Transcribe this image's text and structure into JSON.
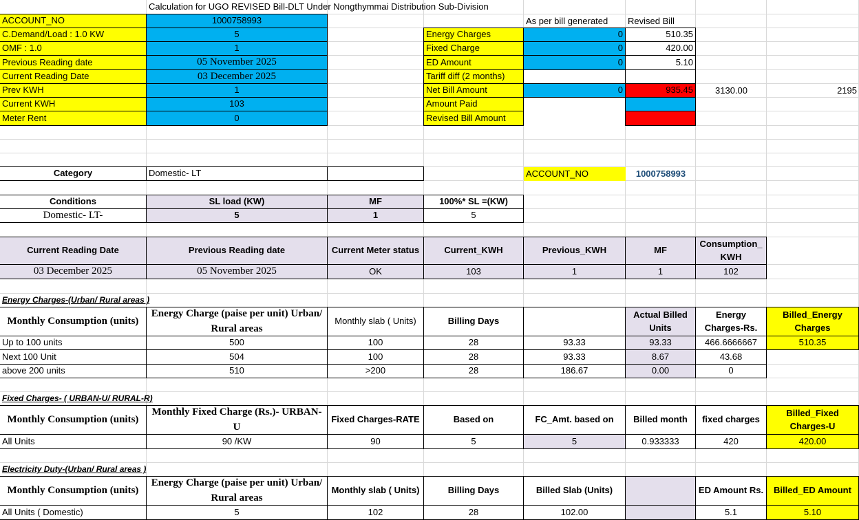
{
  "title": "Calculation for UGO REVISED Bill-DLT Under Nongthymmai Distribution Sub-Division",
  "colors": {
    "yellow": "#ffff00",
    "blue": "#00b0f0",
    "red": "#ff0000",
    "lavender": "#e4dfec"
  },
  "inputs": [
    {
      "label": "ACCOUNT_NO",
      "value": "1000758993"
    },
    {
      "label": "C.Demand/Load : 1.0 KW",
      "value": "5"
    },
    {
      "label": "OMF : 1.0",
      "value": "1"
    },
    {
      "label": "Previous Reading date",
      "value": "05 November 2025"
    },
    {
      "label": "Current Reading Date",
      "value": "03 December 2025"
    },
    {
      "label": "Prev KWH",
      "value": "1"
    },
    {
      "label": "Current KWH",
      "value": "103"
    },
    {
      "label": "Meter Rent",
      "value": "0"
    }
  ],
  "summary": {
    "col_generated": "As per bill generated",
    "col_revised": "Revised Bill",
    "rows": [
      {
        "label": "Energy Charges",
        "generated": "0",
        "revised": "510.35"
      },
      {
        "label": "Fixed Charge",
        "generated": "0",
        "revised": "420.00"
      },
      {
        "label": "ED Amount",
        "generated": "0",
        "revised": "5.10"
      },
      {
        "label": "Tariff diff (2 months)",
        "generated": "",
        "revised": ""
      },
      {
        "label": "Net Bill Amount",
        "generated": "0",
        "revised": "935.45",
        "extra1": "3130.00",
        "extra2": "2195"
      },
      {
        "label": "Amount Paid",
        "generated": "",
        "revised": ""
      },
      {
        "label": "Revised Bill Amount",
        "generated": "",
        "revised": ""
      }
    ]
  },
  "category": {
    "label": "Category",
    "value": "Domestic- LT",
    "account_label": "ACCOUNT_NO",
    "account_value": "1000758993"
  },
  "conditions": {
    "headers": [
      "Conditions",
      "SL load (KW)",
      "MF",
      "100%* SL =(KW)"
    ],
    "values": [
      "Domestic- LT-",
      "5",
      "1",
      "5"
    ]
  },
  "readings": {
    "headers": [
      "Current Reading Date",
      "Previous Reading date",
      "Current Meter status",
      "Current_KWH",
      "Previous_KWH",
      "MF",
      "Consumption_KWH"
    ],
    "values": [
      "03 December 2025",
      "05 November 2025",
      "OK",
      "103",
      "1",
      "1",
      "102"
    ]
  },
  "energy": {
    "title": "Energy Charges-(Urban/ Rural areas )",
    "headers": [
      "Monthly Consumption (units)",
      "Energy Charge (paise per unit)  Urban/ Rural areas",
      "Monthly slab ( Units)",
      "Billing Days",
      "",
      "Actual Billed Units",
      "Energy Charges-Rs.",
      "Billed_Energy Charges"
    ],
    "rows": [
      [
        "Up to 100 units",
        "500",
        "100",
        "28",
        "93.33",
        "93.33",
        "466.6666667",
        "510.35"
      ],
      [
        "Next 100 Unit",
        "504",
        "100",
        "28",
        "93.33",
        "8.67",
        "43.68",
        ""
      ],
      [
        "above 200 units",
        "510",
        ">200",
        "28",
        "186.67",
        "0.00",
        "0",
        ""
      ]
    ]
  },
  "fixed": {
    "title": "Fixed Charges- ( URBAN-U/ RURAL-R)",
    "headers": [
      "Monthly Consumption (units)",
      "Monthly Fixed Charge (Rs.)- URBAN-U",
      "Fixed Charges-RATE",
      "Based on",
      "FC_Amt. based on",
      "Billed month",
      "fixed charges",
      "Billed_Fixed Charges-U"
    ],
    "row": [
      "All Units",
      "90 /KW",
      "90",
      "5",
      "5",
      "0.933333",
      "420",
      "420.00"
    ]
  },
  "duty": {
    "title": "Electricity Duty-(Urban/ Rural areas )",
    "headers": [
      "Monthly Consumption (units)",
      "Energy Charge (paise per unit)  Urban/ Rural areas",
      "Monthly slab ( Units)",
      "Billing Days",
      "Billed Slab (Units)",
      "",
      "ED Amount Rs.",
      "Billed_ED Amount"
    ],
    "row": [
      "All Units ( Domestic)",
      "5",
      "102",
      "28",
      "102.00",
      "",
      "5.1",
      "5.10"
    ]
  }
}
